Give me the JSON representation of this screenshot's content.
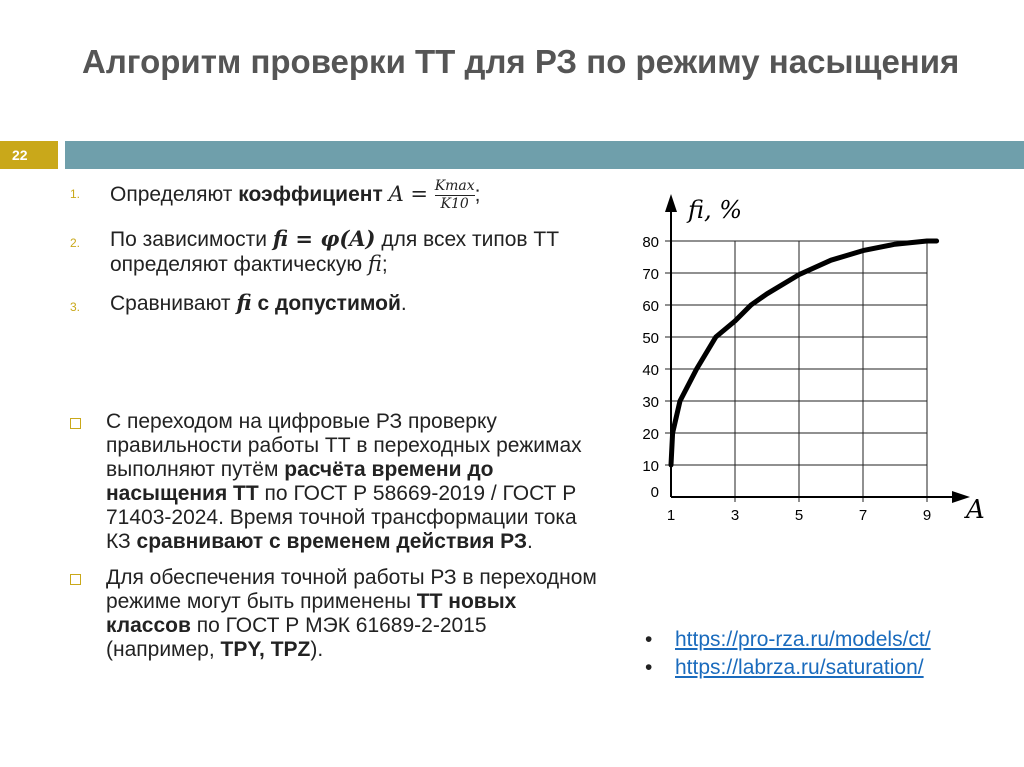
{
  "title": "Алгоритм проверки ТТ для РЗ по режиму насыщения",
  "slide_number": "22",
  "steps": [
    {
      "n": "1.",
      "pre": "Определяют ",
      "bold": "коэффициент ",
      "math": "A = ",
      "frac_top": "Kmax",
      "frac_bottom": "K10",
      "post": ";"
    },
    {
      "n": "2.",
      "pre": "По зависимости ",
      "math": "fi = φ(A)",
      "mid": " для всех типов ТТ определяют фактическую ",
      "math2": "fi",
      "post": ";"
    },
    {
      "n": "3.",
      "pre": "Сравнивают ",
      "math": "fi",
      "bold": " с допустимой",
      "post": "."
    }
  ],
  "bullets": [
    {
      "t1": "С переходом на цифровые РЗ проверку правильности работы ТТ в переходных режимах выполняют путём ",
      "b1": "расчёта времени до насыщения ТТ",
      "t2": " по ГОСТ Р 58669-2019 / ГОСТ Р 71403-2024. Время точной трансформации тока КЗ ",
      "b2": "сравнивают с временем действия РЗ",
      "t3": "."
    },
    {
      "t1": "Для обеспечения точной работы РЗ в переходном режиме могут быть применены ",
      "b1": "ТТ новых классов",
      "t2": " по ГОСТ Р МЭК 61689-2-2015 (например, ",
      "b2": "TPY, TPZ",
      "t3": ")."
    }
  ],
  "links": [
    "https://pro-rza.ru/models/ct/",
    "https://labrza.ru/saturation/"
  ],
  "colors": {
    "accent": "#c9a81a",
    "bar": "#6f9fab",
    "link": "#1a6bbd"
  },
  "chart_data": {
    "type": "line",
    "ylabel": "fi, %",
    "xlabel": "A",
    "x_ticks": [
      "1",
      "3",
      "5",
      "7",
      "9"
    ],
    "y_ticks": [
      "0",
      "10",
      "20",
      "30",
      "40",
      "50",
      "60",
      "70",
      "80"
    ],
    "xlim": [
      1,
      9.5
    ],
    "ylim": [
      0,
      80
    ],
    "grid": true,
    "x": [
      1,
      1.05,
      1.28,
      1.8,
      2.4,
      3,
      3.5,
      4,
      5,
      6,
      7,
      8,
      9,
      9.3
    ],
    "y": [
      10,
      20,
      30,
      40,
      50,
      55,
      60,
      63.5,
      69.5,
      74,
      77,
      79,
      80,
      80
    ]
  }
}
